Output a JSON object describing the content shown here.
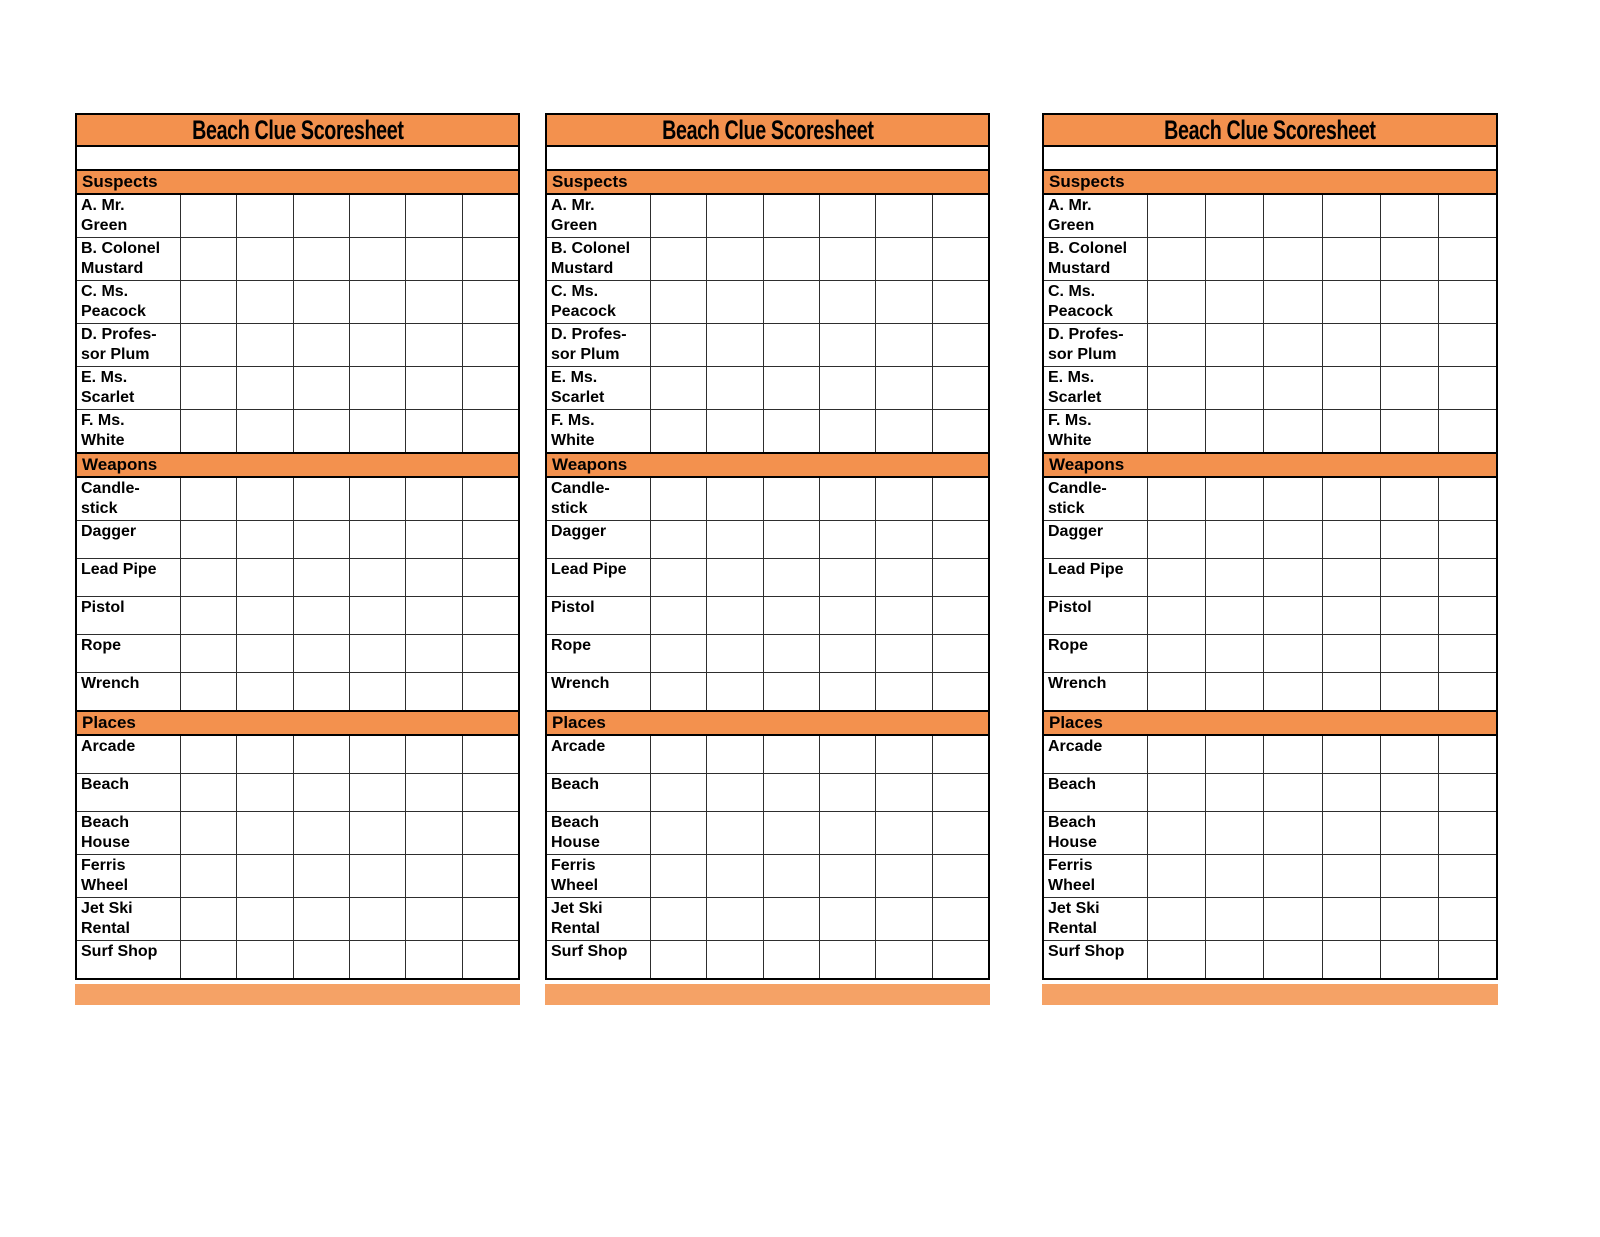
{
  "sheet": {
    "title": "Beach Clue Scoresheet",
    "grid_columns": 6,
    "copies": 3,
    "colors": {
      "accent": "#F3914E",
      "footer": "#F5A266",
      "grid_line": "#2e2e2e",
      "border": "#000000",
      "text": "#000000",
      "background": "#ffffff"
    },
    "sections": [
      {
        "label": "Suspects",
        "rows": [
          {
            "lines": [
              "A. Mr.",
              "Green"
            ]
          },
          {
            "lines": [
              "B. Colonel",
              "Mustard"
            ]
          },
          {
            "lines": [
              "C. Ms.",
              "Peacock"
            ]
          },
          {
            "lines": [
              "D. Profes-",
              "sor Plum"
            ]
          },
          {
            "lines": [
              "E. Ms.",
              "Scarlet"
            ]
          },
          {
            "lines": [
              "F. Ms.",
              "White"
            ]
          }
        ]
      },
      {
        "label": "Weapons",
        "rows": [
          {
            "lines": [
              "Candle-",
              "stick"
            ]
          },
          {
            "lines": [
              "Dagger"
            ]
          },
          {
            "lines": [
              "Lead Pipe"
            ]
          },
          {
            "lines": [
              "Pistol"
            ]
          },
          {
            "lines": [
              "Rope"
            ]
          },
          {
            "lines": [
              "Wrench"
            ]
          }
        ]
      },
      {
        "label": "Places",
        "rows": [
          {
            "lines": [
              "Arcade"
            ]
          },
          {
            "lines": [
              "Beach"
            ]
          },
          {
            "lines": [
              "Beach",
              "House"
            ]
          },
          {
            "lines": [
              "Ferris",
              "Wheel"
            ]
          },
          {
            "lines": [
              "Jet Ski",
              "Rental"
            ]
          },
          {
            "lines": [
              "Surf Shop"
            ]
          }
        ]
      }
    ]
  }
}
